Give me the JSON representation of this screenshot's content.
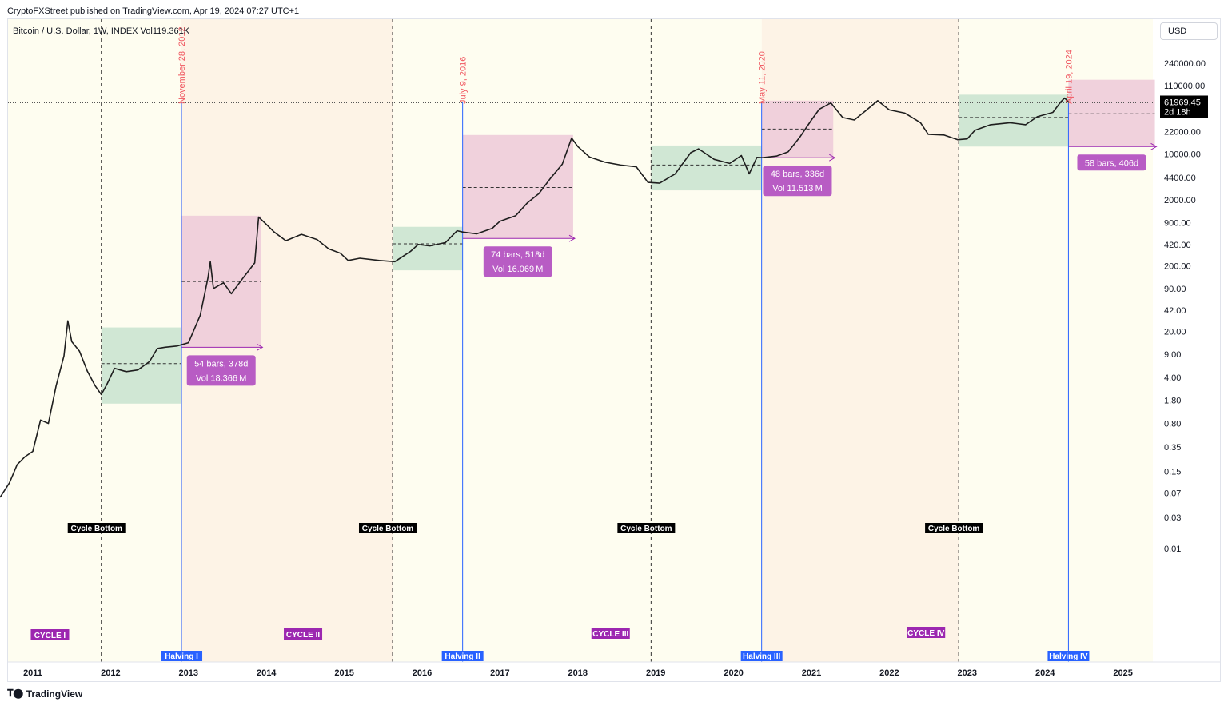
{
  "header": {
    "published": "CryptoFXStreet published on TradingView.com, Apr 19, 2024 07:27 UTC+1"
  },
  "symbol_line": "Bitcoin / U.S. Dollar, 1W, INDEX  Vol119.361K",
  "currency": "USD",
  "footer": {
    "brand": "TradingView"
  },
  "price_tag": {
    "price": "61969.45",
    "countdown": "2d 18h"
  },
  "colors": {
    "cycle_bg_a": "#fefdf0",
    "cycle_bg_b": "#fdf3e6",
    "green_box": "#cbe4d0",
    "pink_box": "#eeccd9",
    "halving_line": "#2962ff",
    "purple": "#9c27b0",
    "label_purple": "#b85cc4"
  },
  "chart_data": {
    "type": "line",
    "title": "Bitcoin / U.S. Dollar, 1W, INDEX",
    "ylabel": "USD",
    "y_scale": "log",
    "y_ticks": [
      "0.01",
      "0.03",
      "0.07",
      "0.15",
      "0.35",
      "0.80",
      "1.80",
      "4.00",
      "9.00",
      "20.00",
      "42.00",
      "90.00",
      "200.00",
      "420.00",
      "900.00",
      "2000.00",
      "4400.00",
      "10000.00",
      "22000.00",
      "110000.00",
      "240000.00"
    ],
    "x_ticks": [
      "2011",
      "2012",
      "2013",
      "2014",
      "2015",
      "2016",
      "2017",
      "2018",
      "2019",
      "2020",
      "2021",
      "2022",
      "2023",
      "2024",
      "2025"
    ],
    "series": [
      {
        "points": [
          [
            2010.58,
            0.06
          ],
          [
            2010.7,
            0.1
          ],
          [
            2010.8,
            0.19
          ],
          [
            2010.9,
            0.25
          ],
          [
            2011.0,
            0.3
          ],
          [
            2011.1,
            0.9
          ],
          [
            2011.2,
            0.8
          ],
          [
            2011.3,
            3.0
          ],
          [
            2011.4,
            8.5
          ],
          [
            2011.45,
            29.0
          ],
          [
            2011.5,
            14.0
          ],
          [
            2011.6,
            10.0
          ],
          [
            2011.7,
            5.0
          ],
          [
            2011.8,
            3.0
          ],
          [
            2011.88,
            2.2
          ],
          [
            2011.95,
            3.1
          ],
          [
            2012.05,
            5.5
          ],
          [
            2012.2,
            4.9
          ],
          [
            2012.35,
            5.2
          ],
          [
            2012.5,
            7.0
          ],
          [
            2012.6,
            11.0
          ],
          [
            2012.7,
            11.5
          ],
          [
            2012.85,
            12.0
          ],
          [
            2013.0,
            13.5
          ],
          [
            2013.15,
            35.0
          ],
          [
            2013.25,
            130.0
          ],
          [
            2013.28,
            230.0
          ],
          [
            2013.32,
            90.0
          ],
          [
            2013.45,
            110.0
          ],
          [
            2013.55,
            75.0
          ],
          [
            2013.7,
            130.0
          ],
          [
            2013.85,
            220.0
          ],
          [
            2013.9,
            1100.0
          ],
          [
            2014.0,
            850.0
          ],
          [
            2014.1,
            650.0
          ],
          [
            2014.25,
            480.0
          ],
          [
            2014.45,
            600.0
          ],
          [
            2014.65,
            500.0
          ],
          [
            2014.8,
            360.0
          ],
          [
            2014.95,
            310.0
          ],
          [
            2015.05,
            240.0
          ],
          [
            2015.2,
            260.0
          ],
          [
            2015.45,
            240.0
          ],
          [
            2015.65,
            230.0
          ],
          [
            2015.85,
            330.0
          ],
          [
            2015.95,
            420.0
          ],
          [
            2016.1,
            400.0
          ],
          [
            2016.3,
            450.0
          ],
          [
            2016.45,
            680.0
          ],
          [
            2016.52,
            650.0
          ],
          [
            2016.7,
            610.0
          ],
          [
            2016.9,
            740.0
          ],
          [
            2017.0,
            950.0
          ],
          [
            2017.2,
            1150.0
          ],
          [
            2017.35,
            1800.0
          ],
          [
            2017.5,
            2500.0
          ],
          [
            2017.65,
            4300.0
          ],
          [
            2017.8,
            7000.0
          ],
          [
            2017.92,
            17500.0
          ],
          [
            2018.0,
            13000.0
          ],
          [
            2018.15,
            9000.0
          ],
          [
            2018.35,
            7500.0
          ],
          [
            2018.55,
            6800.0
          ],
          [
            2018.75,
            6400.0
          ],
          [
            2018.9,
            3700.0
          ],
          [
            2019.05,
            3600.0
          ],
          [
            2019.25,
            5000.0
          ],
          [
            2019.45,
            10500.0
          ],
          [
            2019.55,
            12000.0
          ],
          [
            2019.75,
            8300.0
          ],
          [
            2019.95,
            7200.0
          ],
          [
            2020.1,
            9500.0
          ],
          [
            2020.2,
            5000.0
          ],
          [
            2020.3,
            8900.0
          ],
          [
            2020.37,
            8800.0
          ],
          [
            2020.55,
            9300.0
          ],
          [
            2020.7,
            10800.0
          ],
          [
            2020.85,
            18000.0
          ],
          [
            2021.0,
            33000.0
          ],
          [
            2021.1,
            48000.0
          ],
          [
            2021.25,
            60000.0
          ],
          [
            2021.4,
            36000.0
          ],
          [
            2021.55,
            33000.0
          ],
          [
            2021.7,
            46000.0
          ],
          [
            2021.85,
            65000.0
          ],
          [
            2022.0,
            47000.0
          ],
          [
            2022.2,
            42000.0
          ],
          [
            2022.4,
            30000.0
          ],
          [
            2022.5,
            20000.0
          ],
          [
            2022.7,
            19500.0
          ],
          [
            2022.88,
            16500.0
          ],
          [
            2023.0,
            17000.0
          ],
          [
            2023.1,
            23000.0
          ],
          [
            2023.3,
            28000.0
          ],
          [
            2023.55,
            30000.0
          ],
          [
            2023.75,
            28000.0
          ],
          [
            2023.9,
            37000.0
          ],
          [
            2024.1,
            43000.0
          ],
          [
            2024.2,
            62000.0
          ],
          [
            2024.25,
            71000.0
          ],
          [
            2024.3,
            63000.0
          ]
        ]
      }
    ],
    "halvings": [
      {
        "label": "Halving I",
        "date": "November 28, 2012",
        "x": 2012.91
      },
      {
        "label": "Halving II",
        "date": "July 9, 2016",
        "x": 2016.52
      },
      {
        "label": "Halving III",
        "date": "May 11, 2020",
        "x": 2020.36
      },
      {
        "label": "Halving IV",
        "date": "April 19, 2024",
        "x": 2024.3
      }
    ],
    "cycle_bottoms": [
      {
        "label": "Cycle Bottom",
        "x": 2011.88
      },
      {
        "label": "Cycle Bottom",
        "x": 2015.62
      },
      {
        "label": "Cycle Bottom",
        "x": 2018.94
      },
      {
        "label": "Cycle Bottom",
        "x": 2022.89
      }
    ],
    "cycles": [
      "CYCLE I",
      "CYCLE II",
      "CYCLE III",
      "CYCLE IV"
    ],
    "pre_halving_boxes": [
      {
        "x0": 2011.88,
        "x1": 2012.91,
        "y_low": 1.6,
        "y_high": 23.0,
        "y_mid": 6.5
      },
      {
        "x0": 2015.62,
        "x1": 2016.52,
        "y_low": 170.0,
        "y_high": 780.0,
        "y_mid": 430.0
      },
      {
        "x0": 2018.94,
        "x1": 2020.36,
        "y_low": 2800.0,
        "y_high": 13500.0,
        "y_mid": 6800.0
      },
      {
        "x0": 2022.89,
        "x1": 2024.3,
        "y_low": 13000.0,
        "y_high": 80000.0,
        "y_mid": 36000.0
      }
    ],
    "post_halving_boxes": [
      {
        "x0": 2012.91,
        "x1": 2013.93,
        "y_low": 11.5,
        "y_high": 1150.0,
        "y_mid": 115.0,
        "bars": "54 bars, 378d",
        "vol": "Vol 18.366 M"
      },
      {
        "x0": 2016.52,
        "x1": 2017.94,
        "y_low": 520.0,
        "y_high": 19500.0,
        "y_mid": 3100.0,
        "bars": "74 bars, 518d",
        "vol": "Vol 16.069 M"
      },
      {
        "x0": 2020.36,
        "x1": 2021.28,
        "y_low": 8800.0,
        "y_high": 65000.0,
        "y_mid": 24000.0,
        "bars": "48 bars, 336d",
        "vol": "Vol 11.513 M"
      },
      {
        "x0": 2024.3,
        "x1": 2025.41,
        "y_low": 13000.0,
        "y_high": 135000.0,
        "y_mid": 41000.0,
        "bars": "58 bars, 406d",
        "vol": ""
      }
    ]
  }
}
